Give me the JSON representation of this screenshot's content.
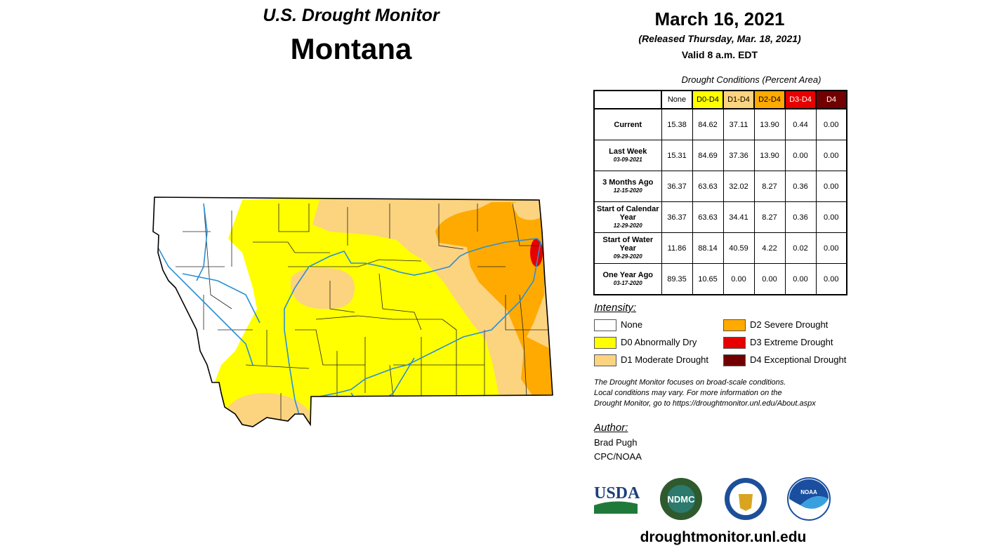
{
  "header": {
    "title": "U.S. Drought Monitor",
    "state": "Montana",
    "date": "March 16, 2021",
    "released": "(Released Thursday, Mar. 18, 2021)",
    "valid": "Valid 8 a.m. EDT"
  },
  "table": {
    "caption": "Drought Conditions (Percent Area)",
    "columns": [
      {
        "label": "None",
        "color": "#ffffff"
      },
      {
        "label": "D0-D4",
        "color": "#ffff00"
      },
      {
        "label": "D1-D4",
        "color": "#fcd37f"
      },
      {
        "label": "D2-D4",
        "color": "#ffaa00"
      },
      {
        "label": "D3-D4",
        "color": "#e60000"
      },
      {
        "label": "D4",
        "color": "#730000"
      }
    ],
    "rows": [
      {
        "label": "Current",
        "date": "",
        "values": [
          "15.38",
          "84.62",
          "37.11",
          "13.90",
          "0.44",
          "0.00"
        ]
      },
      {
        "label": "Last Week",
        "date": "03-09-2021",
        "values": [
          "15.31",
          "84.69",
          "37.36",
          "13.90",
          "0.00",
          "0.00"
        ]
      },
      {
        "label": "3 Months Ago",
        "date": "12-15-2020",
        "values": [
          "36.37",
          "63.63",
          "32.02",
          "8.27",
          "0.36",
          "0.00"
        ]
      },
      {
        "label": "Start of Calendar Year",
        "date": "12-29-2020",
        "values": [
          "36.37",
          "63.63",
          "34.41",
          "8.27",
          "0.36",
          "0.00"
        ]
      },
      {
        "label": "Start of Water Year",
        "date": "09-29-2020",
        "values": [
          "11.86",
          "88.14",
          "40.59",
          "4.22",
          "0.02",
          "0.00"
        ]
      },
      {
        "label": "One Year Ago",
        "date": "03-17-2020",
        "values": [
          "89.35",
          "10.65",
          "0.00",
          "0.00",
          "0.00",
          "0.00"
        ]
      }
    ]
  },
  "legend": {
    "title": "Intensity:",
    "items": [
      {
        "label": "None",
        "color": "#ffffff"
      },
      {
        "label": "D0 Abnormally Dry",
        "color": "#ffff00"
      },
      {
        "label": "D1 Moderate Drought",
        "color": "#fcd37f"
      },
      {
        "label": "D2 Severe Drought",
        "color": "#ffaa00"
      },
      {
        "label": "D3 Extreme Drought",
        "color": "#e60000"
      },
      {
        "label": "D4 Exceptional Drought",
        "color": "#730000"
      }
    ]
  },
  "note": [
    "The Drought Monitor focuses on broad-scale conditions.",
    "Local conditions may vary. For more information on the",
    "Drought Monitor, go to https://droughtmonitor.unl.edu/About.aspx"
  ],
  "author": {
    "title": "Author:",
    "name": "Brad Pugh",
    "org": "CPC/NOAA"
  },
  "logos": {
    "usda": "USDA",
    "ndmc": "NDMC",
    "noaa": "NOAA"
  },
  "website": "droughtmonitor.unl.edu"
}
